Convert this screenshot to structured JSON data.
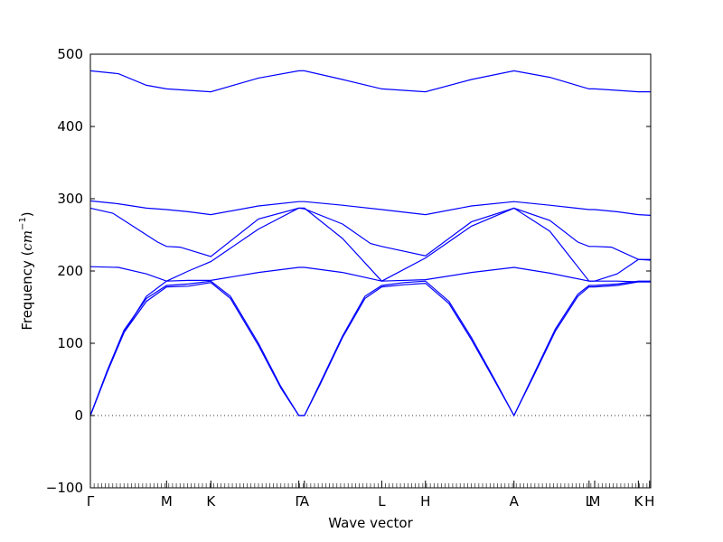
{
  "chart_data": {
    "type": "line",
    "xlabel": "Wave vector",
    "ylabel_text": "Frequency (",
    "ylabel_unit_base": "cm",
    "ylabel_unit_exp": "−1",
    "ylabel_close": ")",
    "ylim": [
      -100,
      500
    ],
    "yticks": [
      -100,
      0,
      100,
      200,
      300,
      400,
      500
    ],
    "xlim": [
      0,
      1
    ],
    "grid": false,
    "zero_line": "dotted",
    "line_color": "#0000ff",
    "high_symmetry_points": [
      {
        "label": "Γ",
        "x": 0.0
      },
      {
        "label": "M",
        "x": 0.136
      },
      {
        "label": "K",
        "x": 0.215
      },
      {
        "label": "Γ",
        "x": 0.372
      },
      {
        "label": "A",
        "x": 0.382
      },
      {
        "label": "L",
        "x": 0.52
      },
      {
        "label": "H",
        "x": 0.598
      },
      {
        "label": "A",
        "x": 0.756
      },
      {
        "label": "L",
        "x": 0.89
      },
      {
        "label": "M",
        "x": 0.9
      },
      {
        "label": "K",
        "x": 0.978
      },
      {
        "label": "H",
        "x": 0.998
      }
    ],
    "series": [
      {
        "x": [
          0.0,
          0.05,
          0.1,
          0.136,
          0.175,
          0.215,
          0.3,
          0.372,
          0.382,
          0.45,
          0.52,
          0.598,
          0.68,
          0.756,
          0.82,
          0.89,
          0.9,
          0.94,
          0.978,
          1.0
        ],
        "y": [
          477,
          473,
          457,
          452,
          450,
          448,
          467,
          477,
          477,
          465,
          452,
          448,
          465,
          477,
          468,
          452,
          452,
          450,
          448,
          448
        ]
      },
      {
        "x": [
          0.0,
          0.05,
          0.1,
          0.136,
          0.175,
          0.215,
          0.3,
          0.372,
          0.382,
          0.45,
          0.52,
          0.598,
          0.68,
          0.756,
          0.82,
          0.89,
          0.9,
          0.94,
          0.978,
          1.0
        ],
        "y": [
          297,
          293,
          287,
          285,
          282,
          278,
          290,
          296,
          296,
          291,
          285,
          278,
          290,
          296,
          291,
          285,
          285,
          282,
          278,
          277
        ]
      },
      {
        "x": [
          0.0,
          0.04,
          0.08,
          0.12,
          0.136,
          0.16,
          0.215,
          0.3,
          0.372,
          0.382,
          0.45,
          0.5,
          0.52,
          0.598,
          0.68,
          0.756,
          0.82,
          0.87,
          0.89,
          0.9,
          0.93,
          0.978,
          1.0
        ],
        "y": [
          287,
          280,
          260,
          240,
          234,
          233,
          220,
          272,
          287,
          286,
          265,
          238,
          234,
          221,
          268,
          287,
          270,
          240,
          234,
          234,
          233,
          216,
          215
        ]
      },
      {
        "x": [
          0.0,
          0.05,
          0.1,
          0.136,
          0.175,
          0.215,
          0.3,
          0.372,
          0.382,
          0.45,
          0.52,
          0.598,
          0.68,
          0.756,
          0.82,
          0.89,
          0.9,
          0.94,
          0.978,
          1.0
        ],
        "y": [
          206,
          205,
          196,
          186,
          187,
          187,
          198,
          205,
          205,
          198,
          186,
          188,
          198,
          205,
          197,
          186,
          186,
          186,
          185,
          185
        ]
      },
      {
        "x": [
          0.0,
          0.03,
          0.06,
          0.1,
          0.136,
          0.175,
          0.215,
          0.3,
          0.372,
          0.382,
          0.45,
          0.52,
          0.598,
          0.68,
          0.756,
          0.82,
          0.89,
          0.9,
          0.94,
          0.978,
          1.0
        ],
        "y": [
          0,
          60,
          115,
          165,
          186,
          200,
          213,
          258,
          287,
          287,
          245,
          186,
          218,
          262,
          287,
          255,
          186,
          186,
          196,
          216,
          216
        ]
      },
      {
        "x": [
          0.0,
          0.03,
          0.06,
          0.1,
          0.136,
          0.175,
          0.215,
          0.25,
          0.3,
          0.34,
          0.372,
          0.382,
          0.41,
          0.45,
          0.49,
          0.52,
          0.56,
          0.598,
          0.64,
          0.68,
          0.72,
          0.756,
          0.79,
          0.83,
          0.87,
          0.89,
          0.9,
          0.94,
          0.978,
          1.0
        ],
        "y": [
          0,
          62,
          118,
          162,
          180,
          182,
          186,
          165,
          100,
          40,
          0,
          0,
          45,
          110,
          165,
          180,
          184,
          186,
          158,
          108,
          52,
          0,
          55,
          120,
          168,
          180,
          180,
          182,
          186,
          186
        ]
      },
      {
        "x": [
          0.0,
          0.03,
          0.06,
          0.1,
          0.136,
          0.175,
          0.215,
          0.25,
          0.3,
          0.34,
          0.372,
          0.382,
          0.41,
          0.45,
          0.49,
          0.52,
          0.56,
          0.598,
          0.64,
          0.68,
          0.72,
          0.756,
          0.79,
          0.83,
          0.87,
          0.89,
          0.9,
          0.94,
          0.978,
          1.0
        ],
        "y": [
          0,
          60,
          115,
          158,
          178,
          179,
          184,
          162,
          97,
          38,
          0,
          0,
          43,
          108,
          162,
          178,
          181,
          183,
          155,
          105,
          50,
          0,
          53,
          117,
          165,
          178,
          178,
          180,
          185,
          185
        ]
      }
    ]
  }
}
